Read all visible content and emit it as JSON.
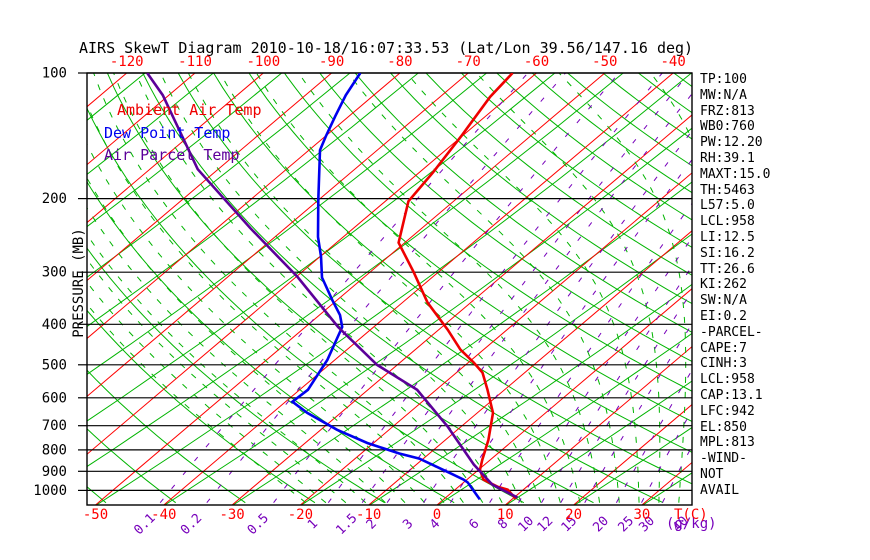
{
  "title": "AIRS SkewT Diagram 2010-10-18/16:07:33.53 (Lat/Lon 39.56/147.16 deg)",
  "legend": {
    "ambient": "Ambient Air Temp",
    "dew": "Dew Point Temp",
    "parcel": "Air Parcel Temp"
  },
  "axes": {
    "pressure_label": "PRESSURE (MB)",
    "pressure_ticks": [
      100,
      200,
      300,
      400,
      500,
      600,
      700,
      800,
      900,
      1000
    ],
    "top_temp_ticks": [
      -120,
      -110,
      -100,
      -90,
      -80,
      -70,
      -60,
      -50,
      -40
    ],
    "bottom_temp_ticks": [
      -50,
      -40,
      -30,
      -20,
      -10,
      0,
      10,
      20,
      30
    ],
    "temp_unit_label": "T(C)",
    "mixing_unit_label": "(g/kg)",
    "mixing_ticks": [
      0.1,
      0.2,
      0.5,
      1,
      1.5,
      2,
      3,
      4,
      6,
      8,
      10,
      12,
      15,
      20,
      25,
      30,
      40
    ]
  },
  "side_panel": {
    "lines": [
      "TP:100",
      "MW:N/A",
      "FRZ:813",
      "WB0:760",
      "PW:12.20",
      "RH:39.1",
      "MAXT:15.0",
      "TH:5463",
      "L57:5.0",
      "LCL:958",
      "LI:12.5",
      "SI:16.2",
      "TT:26.6",
      "KI:262",
      "SW:N/A",
      "EI:0.2",
      "-PARCEL-",
      "CAPE:7",
      "CINH:3",
      "LCL:958",
      "CAP:13.1",
      "LFC:942",
      "EL:850",
      "MPL:813",
      "-WIND-",
      "NOT",
      "AVAIL"
    ]
  },
  "colors": {
    "ambient": "#ee0000",
    "dew_point": "#0000ee",
    "parcel": "#5c0099",
    "isotherm": "#ff0000",
    "adiabat_green": "#00b400",
    "mixing_purple": "#7700bb",
    "grid_black": "#000000"
  },
  "chart_data": {
    "type": "line",
    "title": "AIRS SkewT Diagram 2010-10-18/16:07:33.53 (Lat/Lon 39.56/147.16 deg)",
    "xlabel": "Temperature T(C), skewed isotherms",
    "ylabel": "PRESSURE (MB), logarithmic, inverted",
    "x_tick_range_bottom": [
      -50,
      30
    ],
    "x_tick_range_top": [
      -120,
      -40
    ],
    "ylim": [
      100,
      1070
    ],
    "grid": "pressure lines every 100 MB; isotherms every 10 C; dry adiabats; moist adiabats (green dashed); mixing-ratio lines (purple dashed, g/kg)",
    "legend_position": "upper-left inside plot",
    "series": [
      {
        "name": "Ambient Air Temp",
        "color": "#ee0000",
        "units": [
          "MB",
          "C"
        ],
        "points": [
          [
            100,
            -63.5
          ],
          [
            114,
            -62.7
          ],
          [
            142,
            -60.1
          ],
          [
            173,
            -58.0
          ],
          [
            203,
            -56.6
          ],
          [
            255,
            -50.9
          ],
          [
            300,
            -43.6
          ],
          [
            355,
            -36.3
          ],
          [
            412,
            -28.7
          ],
          [
            460,
            -23.4
          ],
          [
            494,
            -19.2
          ],
          [
            522,
            -16.2
          ],
          [
            574,
            -12.5
          ],
          [
            652,
            -7.7
          ],
          [
            757,
            -3.7
          ],
          [
            844,
            -1.2
          ],
          [
            892,
            0.2
          ],
          [
            942,
            2.4
          ],
          [
            980,
            5.7
          ],
          [
            996,
            7.7
          ],
          [
            1048,
            10.5
          ]
        ]
      },
      {
        "name": "Dew Point Temp",
        "color": "#0000ee",
        "units": [
          "MB",
          "C"
        ],
        "points": [
          [
            100,
            -85.8
          ],
          [
            113,
            -84.1
          ],
          [
            127,
            -82.0
          ],
          [
            142,
            -79.9
          ],
          [
            153,
            -78.4
          ],
          [
            201,
            -70.1
          ],
          [
            247,
            -63.7
          ],
          [
            275,
            -59.9
          ],
          [
            309,
            -56.1
          ],
          [
            350,
            -50.7
          ],
          [
            380,
            -47.0
          ],
          [
            406,
            -44.6
          ],
          [
            487,
            -41.1
          ],
          [
            574,
            -38.8
          ],
          [
            613,
            -39.0
          ],
          [
            652,
            -34.9
          ],
          [
            716,
            -27.6
          ],
          [
            770,
            -20.9
          ],
          [
            816,
            -14.4
          ],
          [
            839,
            -10.6
          ],
          [
            909,
            -3.6
          ],
          [
            942,
            -0.5
          ],
          [
            957,
            0.6
          ],
          [
            1051,
            5.3
          ]
        ]
      },
      {
        "name": "Air Parcel Temp",
        "color": "#5c0099",
        "units": [
          "MB",
          "C"
        ],
        "points": [
          [
            100,
            -117.0
          ],
          [
            113,
            -110.9
          ],
          [
            170,
            -93.0
          ],
          [
            235,
            -75.2
          ],
          [
            308,
            -59.8
          ],
          [
            406,
            -45.2
          ],
          [
            500,
            -33.0
          ],
          [
            574,
            -22.8
          ],
          [
            703,
            -12.0
          ],
          [
            867,
            -1.6
          ],
          [
            969,
            4.6
          ],
          [
            1040,
            10.5
          ]
        ]
      }
    ],
    "background": {
      "isotherms_c": {
        "from": -120,
        "to": 30,
        "step": 10
      },
      "dry_adiabats_k": {
        "from": 220,
        "to": 460,
        "step": 10
      },
      "moist_adiabats_c": {
        "from": -24,
        "to": 36,
        "step": 3
      },
      "mixing_ratio_g_kg": [
        0.1,
        0.2,
        0.5,
        1,
        1.5,
        2,
        3,
        4,
        6,
        8,
        10,
        12,
        15,
        20,
        25,
        30,
        40
      ]
    }
  }
}
